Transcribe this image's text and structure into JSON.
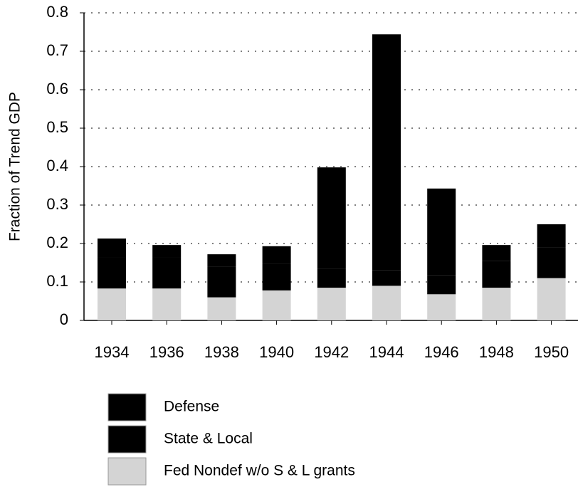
{
  "chart_data": {
    "type": "stacked_bar",
    "y_label": "Fraction of Trend GDP",
    "categories": [
      "1934",
      "1936",
      "1938",
      "1940",
      "1942",
      "1944",
      "1946",
      "1948",
      "1950"
    ],
    "series": [
      {
        "name": "Defense",
        "color": "#000000",
        "values": [
          0.05,
          0.033,
          0.032,
          0.045,
          0.263,
          0.614,
          0.225,
          0.041,
          0.06
        ]
      },
      {
        "name": "State & Local",
        "color": "#000000",
        "values": [
          0.08,
          0.08,
          0.08,
          0.07,
          0.05,
          0.04,
          0.05,
          0.07,
          0.08
        ]
      },
      {
        "name": "Fed Nondef w/o S & L grants",
        "color": "#d4d4d4",
        "values": [
          0.083,
          0.083,
          0.06,
          0.078,
          0.085,
          0.09,
          0.068,
          0.085,
          0.11
        ]
      }
    ],
    "ylim": [
      0,
      0.8
    ],
    "yticks": [
      0,
      0.1,
      0.2,
      0.3,
      0.4,
      0.5,
      0.6,
      0.7,
      0.8
    ],
    "grid": true
  }
}
